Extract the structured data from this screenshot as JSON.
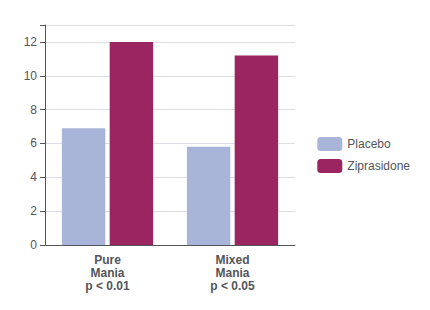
{
  "chart_data": {
    "type": "bar",
    "categories": [
      "Pure\nMania\np < 0.01",
      "Mixed\nMania\np < 0.05"
    ],
    "series": [
      {
        "name": "Placebo",
        "color": "#a8b4d8",
        "values": [
          6.9,
          5.8
        ]
      },
      {
        "name": "Ziprasidone",
        "color": "#9b2560",
        "values": [
          12.0,
          11.2
        ]
      }
    ],
    "ylim": [
      0,
      13
    ],
    "yticks": [
      0,
      2,
      4,
      6,
      8,
      10,
      12
    ],
    "grid": true,
    "legend": "right"
  }
}
